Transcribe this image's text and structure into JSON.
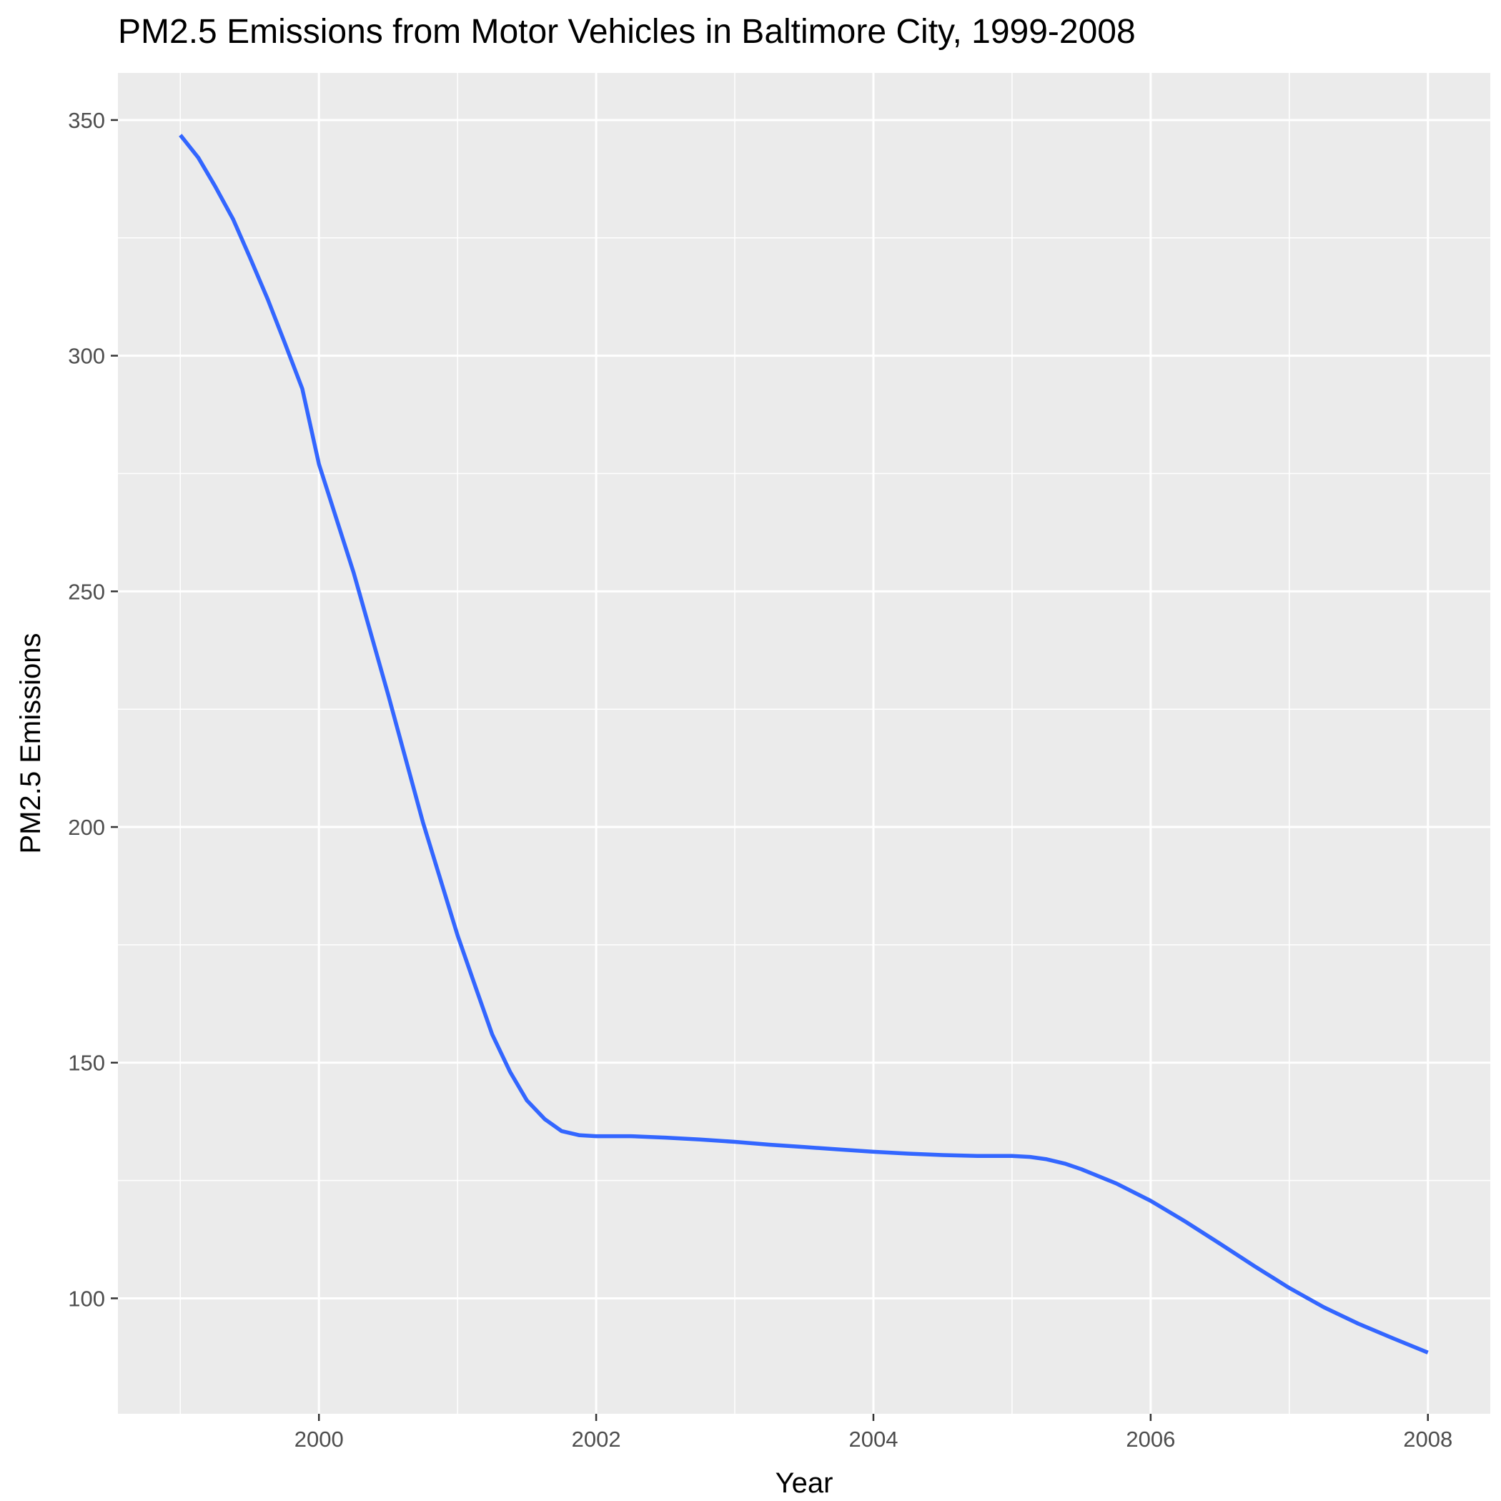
{
  "chart_data": {
    "type": "line",
    "title": "PM2.5 Emissions from Motor Vehicles in Baltimore City, 1999-2008",
    "xlabel": "Year",
    "ylabel": "PM2.5 Emissions",
    "xlim": [
      1998.55,
      2008.45
    ],
    "ylim": [
      75.5,
      360
    ],
    "x_ticks": [
      2000,
      2002,
      2004,
      2006,
      2008
    ],
    "x_tick_labels": [
      "2000",
      "2002",
      "2004",
      "2006",
      "2008"
    ],
    "x_minor_ticks": [
      1999,
      2001,
      2003,
      2005,
      2007
    ],
    "y_ticks": [
      100,
      150,
      200,
      250,
      300,
      350
    ],
    "y_tick_labels": [
      "100",
      "150",
      "200",
      "250",
      "300",
      "350"
    ],
    "y_minor_ticks": [
      125,
      175,
      225,
      275,
      325
    ],
    "grid": true,
    "panel_background": "#ebebeb",
    "series": [
      {
        "color": "#3366ff",
        "x": [
          1999,
          1999.13,
          1999.25,
          1999.38,
          1999.5,
          1999.63,
          1999.75,
          1999.88,
          2000,
          2000.25,
          2000.5,
          2000.75,
          2001,
          2001.13,
          2001.25,
          2001.38,
          2001.5,
          2001.63,
          2001.75,
          2001.88,
          2002,
          2002.25,
          2002.5,
          2002.75,
          2003,
          2003.25,
          2003.5,
          2003.75,
          2004,
          2004.25,
          2004.5,
          2004.75,
          2005,
          2005.13,
          2005.25,
          2005.38,
          2005.5,
          2005.75,
          2006,
          2006.25,
          2006.5,
          2006.75,
          2007,
          2007.25,
          2007.5,
          2007.75,
          2008
        ],
        "y": [
          346.8,
          342.0,
          336.0,
          329.0,
          321.0,
          312.0,
          303.0,
          293.0,
          277.0,
          254.0,
          228.0,
          201.0,
          177.0,
          166.0,
          156.0,
          148.0,
          142.0,
          138.0,
          135.5,
          134.6,
          134.4,
          134.4,
          134.1,
          133.7,
          133.2,
          132.6,
          132.1,
          131.6,
          131.1,
          130.7,
          130.4,
          130.2,
          130.2,
          130.0,
          129.5,
          128.6,
          127.4,
          124.4,
          120.7,
          116.3,
          111.6,
          106.8,
          102.2,
          98.1,
          94.6,
          91.5,
          88.5
        ]
      }
    ]
  }
}
